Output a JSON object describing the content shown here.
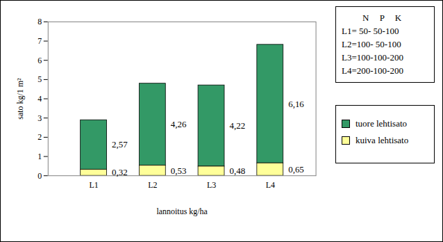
{
  "chart_data": {
    "type": "bar",
    "stacked": true,
    "data_labels": true,
    "grid": false,
    "legend": "right",
    "x_label": "lannoitus kg/ha",
    "y_label": "sato kg/1 m²",
    "categories": [
      "L1",
      "L2",
      "L3",
      "L4"
    ],
    "ylim": [
      0,
      8
    ],
    "yticks": [
      0,
      1,
      2,
      3,
      4,
      5,
      6,
      7,
      8
    ],
    "annotations": [
      "N P K",
      "L1= 50- 50-100",
      "L2=100- 50-100",
      "L3=100-100-200",
      "L4=200-100-200"
    ],
    "series": [
      {
        "name": "tuore lehtisato",
        "color": "#339966",
        "values": [
          2.57,
          4.26,
          4.22,
          6.16
        ],
        "value_labels": [
          "2,57",
          "4,26",
          "4,22",
          "6,16"
        ]
      },
      {
        "name": "kuiva lehtisato",
        "color": "#FFFF99",
        "values": [
          0.32,
          0.53,
          0.48,
          0.65
        ],
        "value_labels": [
          "0,32",
          "0,53",
          "0,48",
          "0,65"
        ]
      }
    ]
  }
}
